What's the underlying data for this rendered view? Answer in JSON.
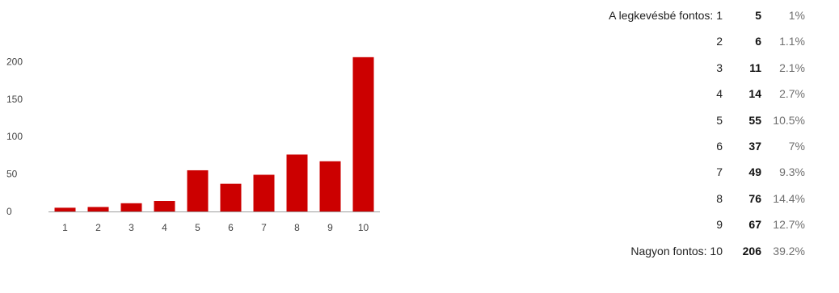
{
  "chart_data": {
    "type": "bar",
    "categories": [
      "1",
      "2",
      "3",
      "4",
      "5",
      "6",
      "7",
      "8",
      "9",
      "10"
    ],
    "values": [
      5,
      6,
      11,
      14,
      55,
      37,
      49,
      76,
      67,
      206
    ],
    "yticks": [
      0,
      50,
      100,
      150,
      200
    ],
    "ylim": [
      0,
      215
    ],
    "bar_color": "#cc0000",
    "grid": false
  },
  "summary": {
    "rows": [
      {
        "label": "A legkevésbé fontos: 1",
        "count": "5",
        "percent": "1%"
      },
      {
        "label": "2",
        "count": "6",
        "percent": "1.1%"
      },
      {
        "label": "3",
        "count": "11",
        "percent": "2.1%"
      },
      {
        "label": "4",
        "count": "14",
        "percent": "2.7%"
      },
      {
        "label": "5",
        "count": "55",
        "percent": "10.5%"
      },
      {
        "label": "6",
        "count": "37",
        "percent": "7%"
      },
      {
        "label": "7",
        "count": "49",
        "percent": "9.3%"
      },
      {
        "label": "8",
        "count": "76",
        "percent": "14.4%"
      },
      {
        "label": "9",
        "count": "67",
        "percent": "12.7%"
      },
      {
        "label": "Nagyon fontos: 10",
        "count": "206",
        "percent": "39.2%"
      }
    ]
  }
}
